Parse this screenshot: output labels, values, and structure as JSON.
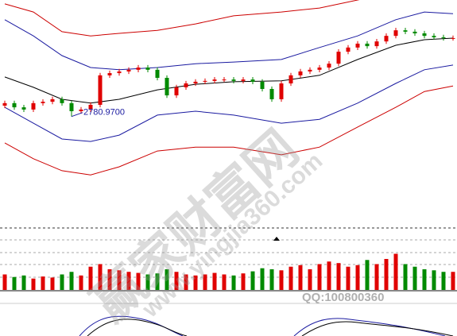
{
  "chart_data": {
    "type": "candlestick",
    "annotation": "2780.9700",
    "ylim": [
      2400,
      3200
    ],
    "up_color": "#e00000",
    "down_color": "#008a00",
    "open": [
      2820,
      2829,
      2814,
      2806,
      2829,
      2834,
      2843,
      2829,
      2800,
      2806,
      2823,
      2929,
      2937,
      2943,
      2949,
      2957,
      2949,
      2920,
      2857,
      2886,
      2900,
      2906,
      2909,
      2914,
      2914,
      2909,
      2914,
      2906,
      2880,
      2843,
      2900,
      2929,
      2943,
      2949,
      2957,
      2971,
      3014,
      3029,
      3043,
      3034,
      3051,
      3071,
      3091,
      3086,
      3080,
      3071,
      3066,
      3063
    ],
    "high": [
      2838,
      2838,
      2823,
      2838,
      2843,
      2852,
      2852,
      2838,
      2815,
      2832,
      2938,
      2946,
      2952,
      2958,
      2966,
      2966,
      2958,
      2929,
      2895,
      2909,
      2915,
      2918,
      2923,
      2923,
      2923,
      2923,
      2923,
      2915,
      2889,
      2909,
      2938,
      2952,
      2958,
      2966,
      2980,
      3023,
      3038,
      3052,
      3052,
      3060,
      3080,
      3100,
      3100,
      3095,
      3089,
      3080,
      3075,
      3072
    ],
    "low": [
      2811,
      2805,
      2797,
      2797,
      2820,
      2825,
      2820,
      2780.97,
      2791,
      2797,
      2814,
      2920,
      2928,
      2934,
      2940,
      2940,
      2911,
      2848,
      2848,
      2877,
      2891,
      2897,
      2900,
      2905,
      2900,
      2900,
      2897,
      2871,
      2834,
      2834,
      2891,
      2920,
      2934,
      2940,
      2948,
      2962,
      3005,
      3020,
      3025,
      3025,
      3042,
      3062,
      3077,
      3071,
      3062,
      3057,
      3054,
      3054
    ],
    "close": [
      2829,
      2814,
      2806,
      2829,
      2834,
      2843,
      2829,
      2800,
      2806,
      2823,
      2929,
      2937,
      2943,
      2949,
      2957,
      2949,
      2920,
      2857,
      2886,
      2900,
      2906,
      2909,
      2914,
      2914,
      2909,
      2914,
      2906,
      2880,
      2843,
      2900,
      2929,
      2943,
      2949,
      2957,
      2971,
      3014,
      3029,
      3043,
      3034,
      3051,
      3071,
      3091,
      3086,
      3080,
      3071,
      3066,
      3063,
      3063
    ],
    "bands": {
      "x": [
        0,
        3,
        6,
        9,
        12,
        16,
        20,
        24,
        29,
        33,
        37,
        41,
        44,
        47
      ],
      "series": [
        {
          "color": "#000000",
          "values": [
            2923,
            2886,
            2843,
            2829,
            2843,
            2877,
            2897,
            2906,
            2909,
            2929,
            2986,
            3037,
            3057,
            3063
          ]
        },
        {
          "color": "#1a1aa0",
          "values": [
            3129,
            3071,
            3000,
            2957,
            2949,
            2957,
            2971,
            2977,
            2986,
            3029,
            3071,
            3129,
            3157,
            3151
          ]
        },
        {
          "color": "#1a1aa0",
          "values": [
            2814,
            2757,
            2700,
            2691,
            2714,
            2786,
            2800,
            2786,
            2757,
            2771,
            2829,
            2900,
            2949,
            2966
          ]
        },
        {
          "color": "#cc0000",
          "values": [
            3186,
            3157,
            3086,
            3071,
            3080,
            3091,
            3114,
            3143,
            3157,
            3171,
            3200,
            3229,
            3257,
            3243
          ]
        },
        {
          "color": "#cc0000",
          "values": [
            2686,
            2629,
            2586,
            2571,
            2600,
            2657,
            2671,
            2671,
            2643,
            2671,
            2743,
            2814,
            2871,
            2891
          ]
        }
      ]
    },
    "volume": {
      "ylim": [
        0,
        100
      ],
      "values": [
        30,
        25,
        28,
        22,
        26,
        24,
        30,
        35,
        28,
        45,
        50,
        40,
        38,
        35,
        33,
        30,
        32,
        40,
        35,
        30,
        28,
        30,
        33,
        30,
        28,
        32,
        36,
        42,
        40,
        38,
        45,
        48,
        40,
        50,
        55,
        52,
        45,
        48,
        58,
        50,
        60,
        70,
        50,
        45,
        40,
        38,
        35,
        35
      ]
    },
    "watermark": {
      "site": "赢家财富网",
      "url": "www.yingjia360.com",
      "qq": "QQ:100800360"
    }
  }
}
